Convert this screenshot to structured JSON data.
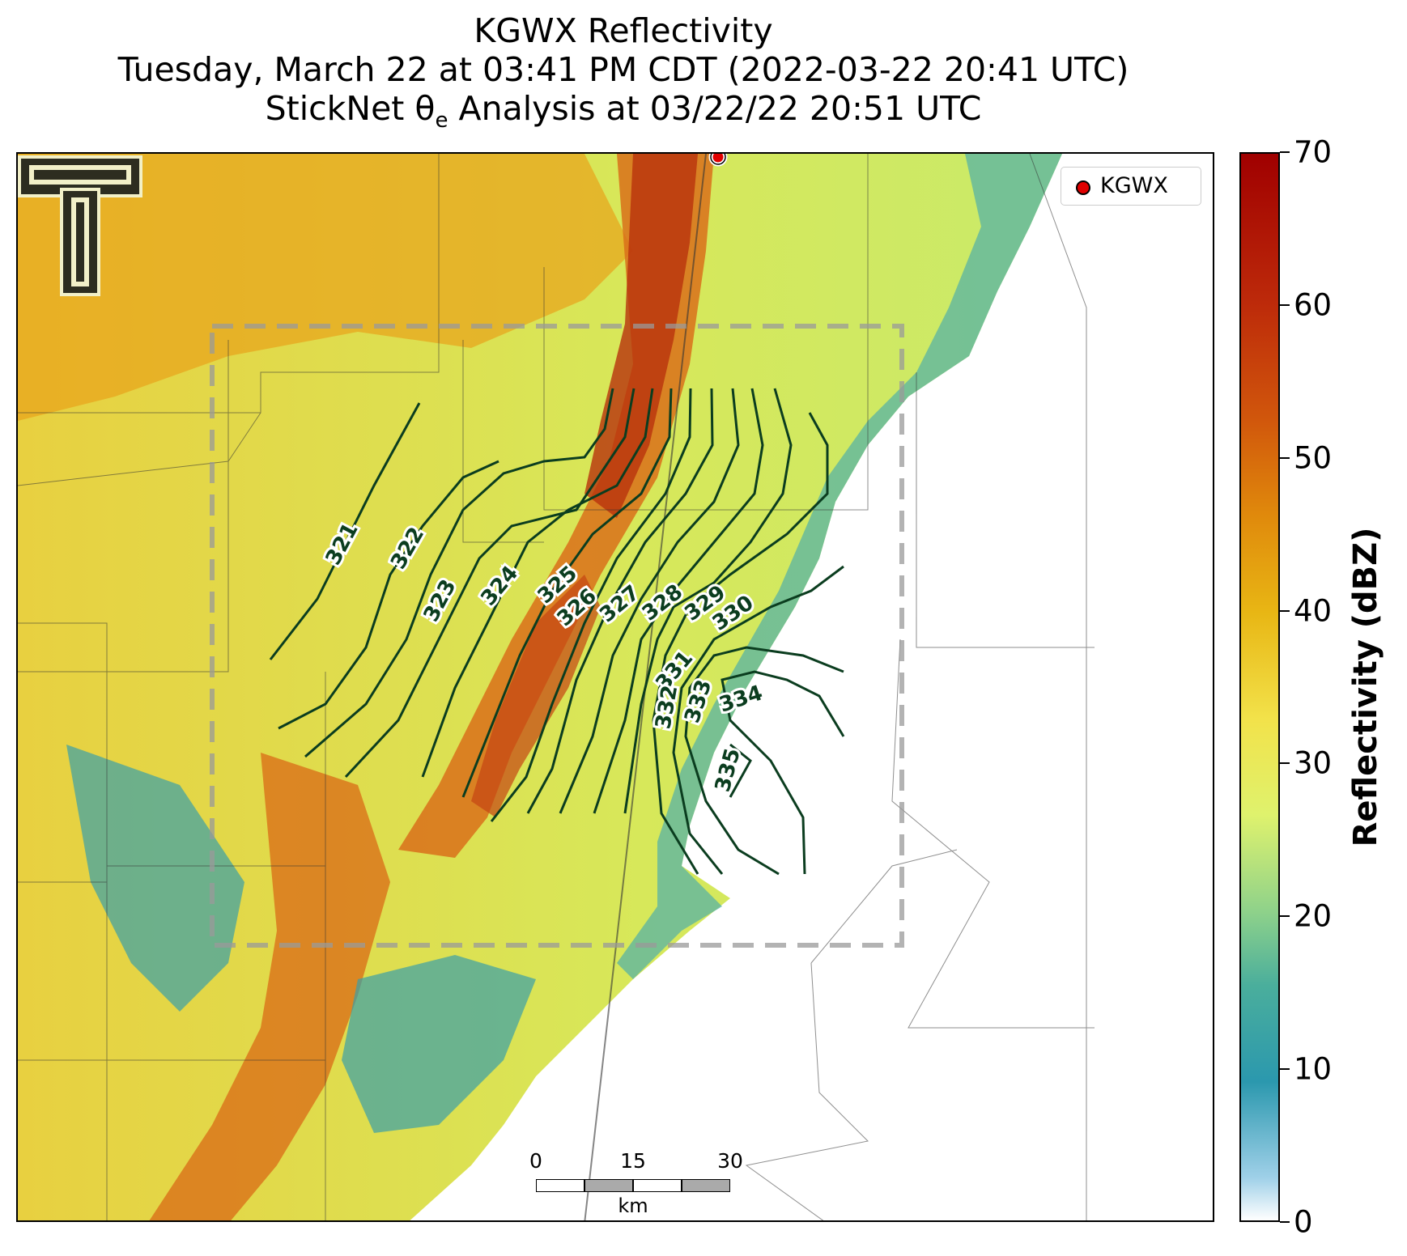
{
  "title": {
    "line1": "KGWX Reflectivity",
    "line2": "Tuesday, March 22 at 03:41 PM CDT (2022-03-22 20:41 UTC)",
    "line3_prefix": "StickNet θ",
    "line3_sub": "e",
    "line3_suffix": " Analysis at 03/22/22 20:51 UTC"
  },
  "legend": {
    "label": "KGWX",
    "marker_color": "#e00000"
  },
  "scalebar": {
    "ticks": [
      "0",
      "15",
      "30"
    ],
    "unit": "km"
  },
  "colorbar": {
    "title": "Reflectivity (dBZ)",
    "ticks": [
      "0",
      "10",
      "20",
      "30",
      "40",
      "50",
      "60",
      "70"
    ],
    "range": [
      0,
      70
    ]
  },
  "contours": {
    "color": "#0b3d1f",
    "labels": [
      "321",
      "322",
      "323",
      "324",
      "325",
      "326",
      "327",
      "328",
      "329",
      "330",
      "331",
      "332",
      "333",
      "334",
      "335"
    ]
  },
  "colors": {
    "analysis_box": "#9a9a9a",
    "county_lines": "#333333"
  }
}
